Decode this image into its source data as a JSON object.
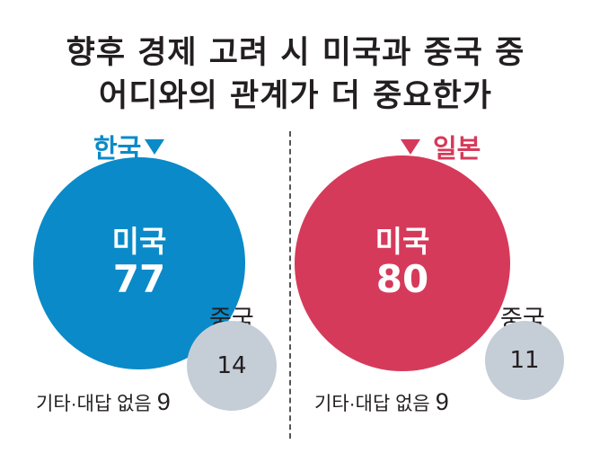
{
  "chart_data": {
    "type": "bubble",
    "title": "향후 경제 고려 시 미국과 중국 중",
    "subtitle": "어디와의 관계가 더 중요한가",
    "panels": [
      {
        "country": "한국",
        "color": "#0a8ac8",
        "main": {
          "label": "미국",
          "value": 77
        },
        "secondary": {
          "label": "중국",
          "value": 14
        },
        "other": {
          "label": "기타·대답 없음",
          "value": 9
        }
      },
      {
        "country": "일본",
        "color": "#d63a5a",
        "main": {
          "label": "미국",
          "value": 80
        },
        "secondary": {
          "label": "중국",
          "value": 11
        },
        "other": {
          "label": "기타·대답 없음",
          "value": 9
        }
      }
    ],
    "secondary_color": "#c5cdd7"
  }
}
